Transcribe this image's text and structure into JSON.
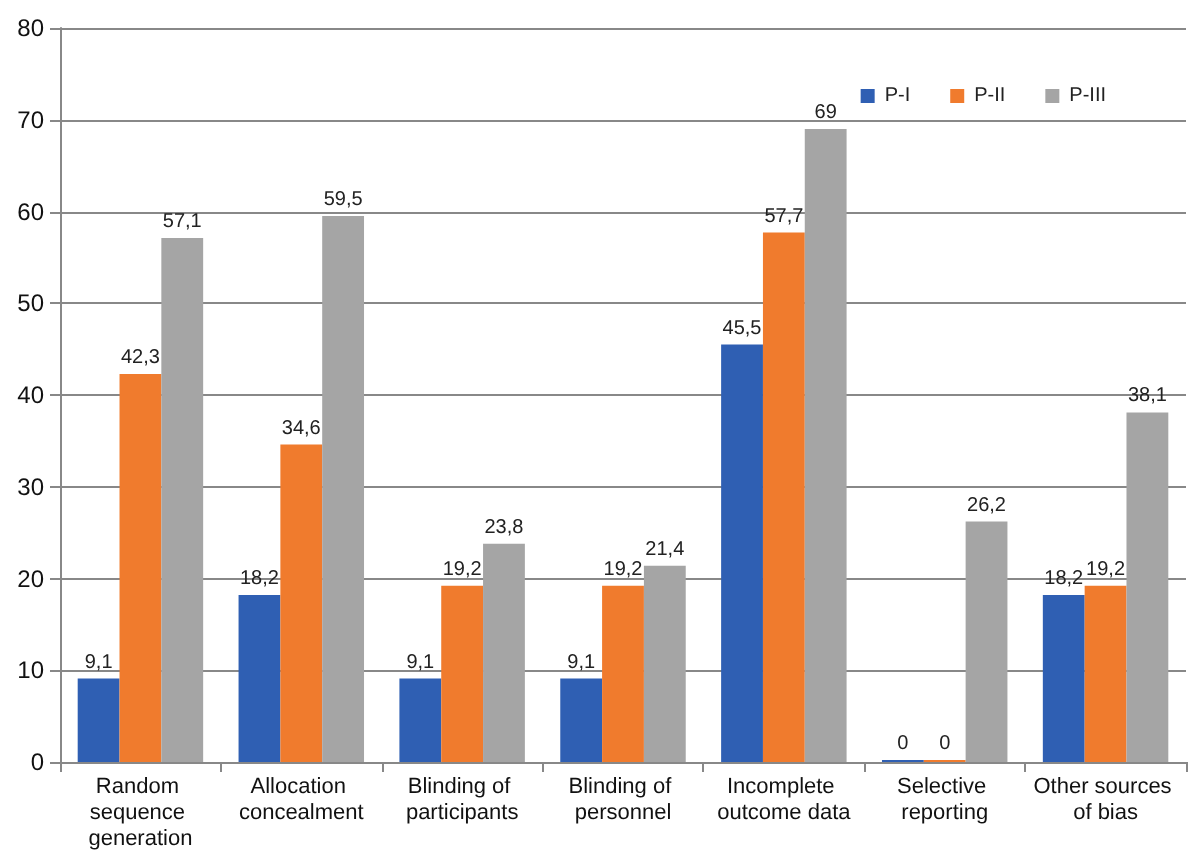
{
  "chart_data": {
    "type": "bar",
    "categories": [
      "Random sequence generation",
      "Allocation concealment",
      "Blinding of participants",
      "Blinding of personnel",
      "Incomplete outcome data",
      "Selective reporting",
      "Other sources of bias"
    ],
    "series": [
      {
        "name": "P-I",
        "color": "#2f5fb3",
        "values": [
          9.1,
          18.2,
          9.1,
          9.1,
          45.5,
          0,
          18.2
        ],
        "value_labels": [
          "9,1",
          "18,2",
          "9,1",
          "9,1",
          "45,5",
          "0",
          "18,2"
        ]
      },
      {
        "name": "P-II",
        "color": "#f07b2d",
        "values": [
          42.3,
          34.6,
          19.2,
          19.2,
          57.7,
          0,
          19.2
        ],
        "value_labels": [
          "42,3",
          "34,6",
          "19,2",
          "19,2",
          "57,7",
          "0",
          "19,2"
        ]
      },
      {
        "name": "P-III",
        "color": "#a5a5a5",
        "values": [
          57.1,
          59.5,
          23.8,
          21.4,
          69,
          26.2,
          38.1
        ],
        "value_labels": [
          "57,1",
          "59,5",
          "23,8",
          "21,4",
          "69",
          "26,2",
          "38,1"
        ]
      }
    ],
    "ylim": [
      0,
      80
    ],
    "yticks": [
      0,
      10,
      20,
      30,
      40,
      50,
      60,
      70,
      80
    ],
    "grid": "y",
    "legend": "top right"
  }
}
